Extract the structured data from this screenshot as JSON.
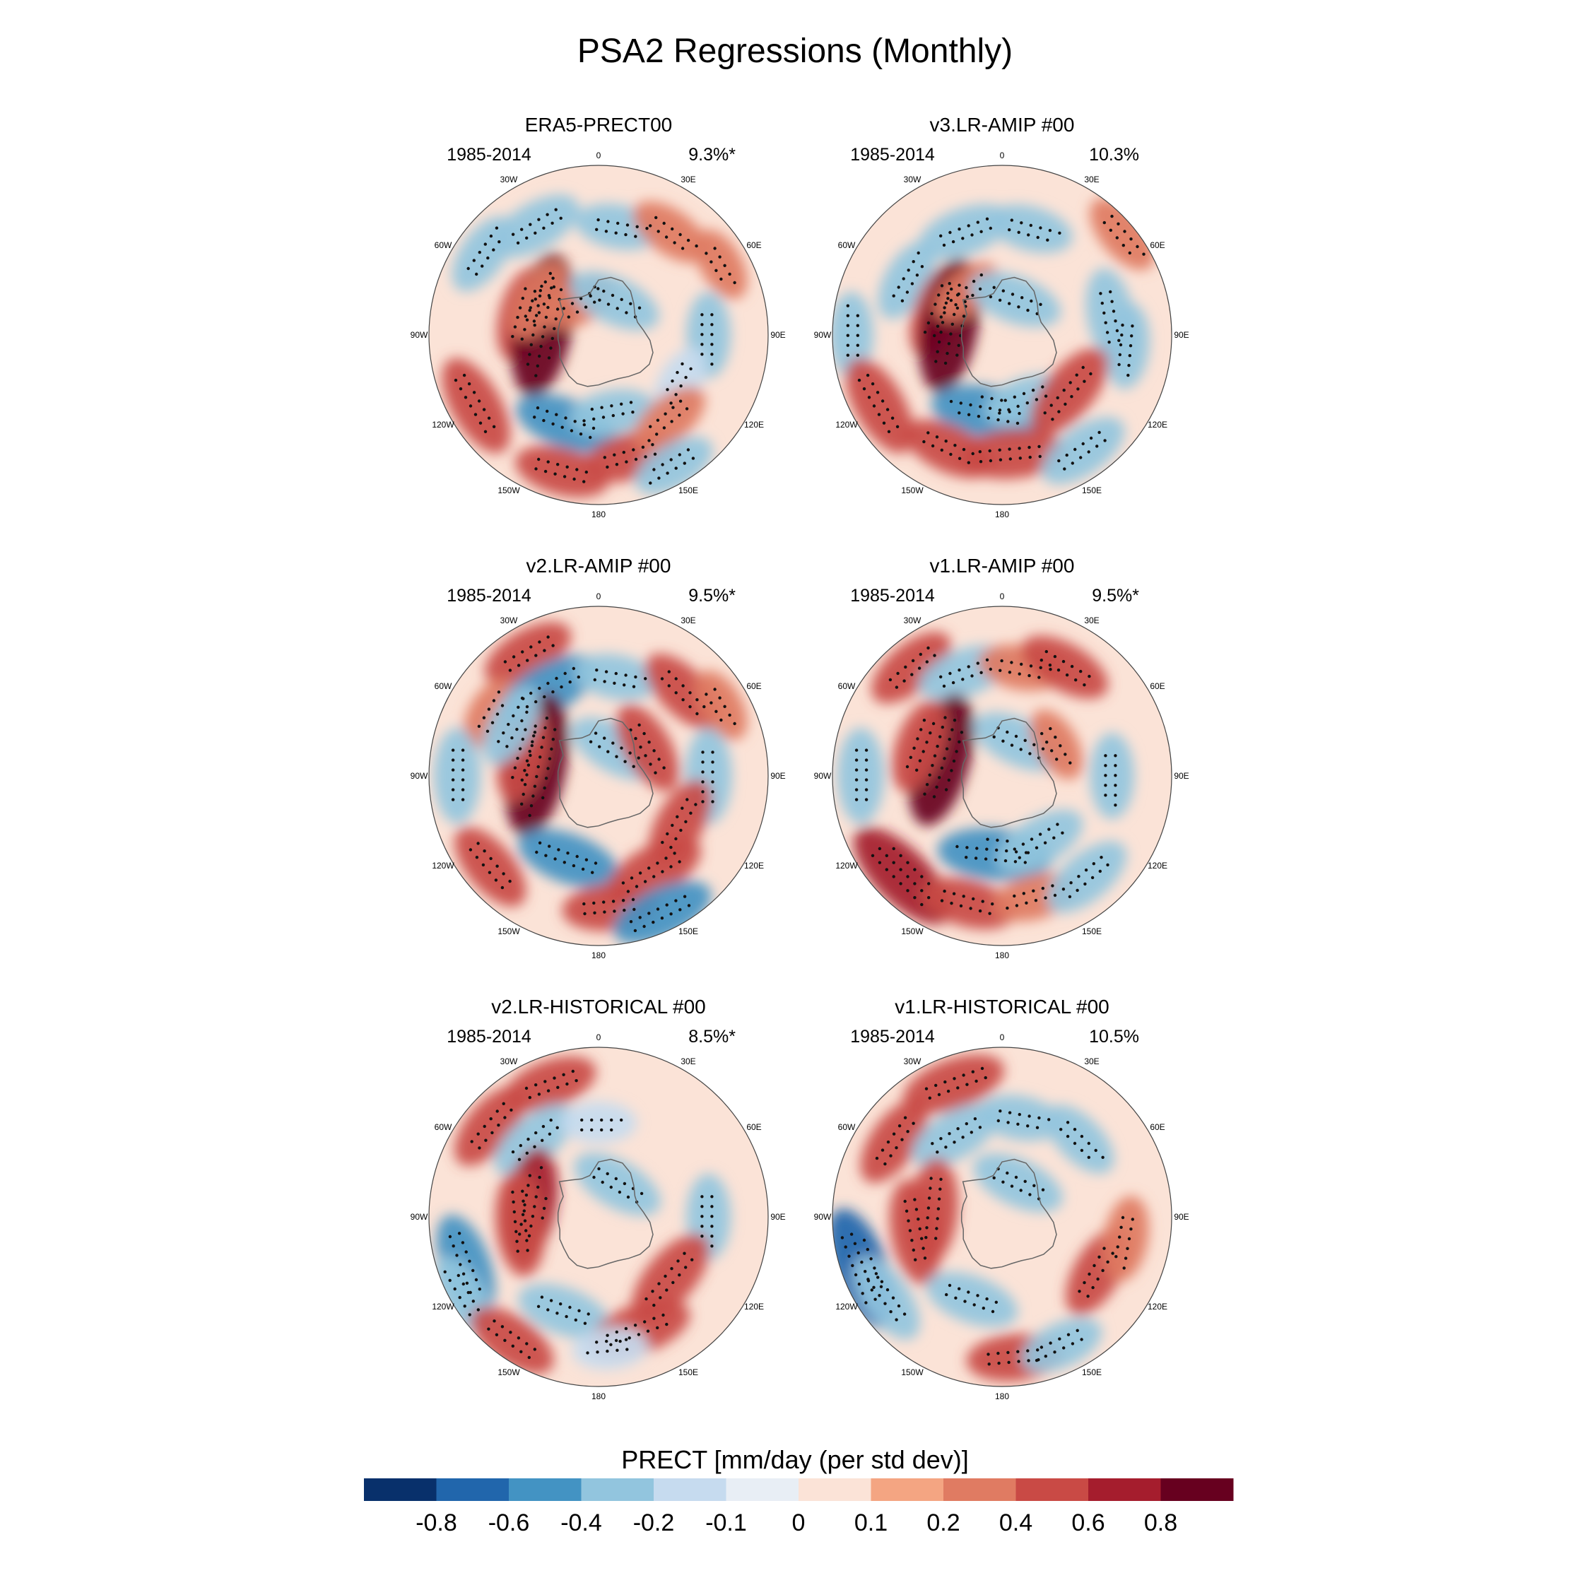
{
  "figure": {
    "title": "PSA2 Regressions (Monthly)"
  },
  "chart_data": {
    "type": "heatmap",
    "projection": "south-polar-stereographic",
    "variable": "PRECT",
    "longitude_labels": [
      "0",
      "30E",
      "60E",
      "90E",
      "120E",
      "150E",
      "180",
      "150W",
      "120W",
      "90W",
      "60W",
      "30W"
    ],
    "panels": [
      {
        "title": "ERA5-PRECT00",
        "period": "1985-2014",
        "variance": "9.3%*",
        "features": [
          {
            "lon": 305,
            "lat": -45,
            "value": -0.3
          },
          {
            "lon": 330,
            "lat": -50,
            "value": -0.4
          },
          {
            "lon": 10,
            "lat": -55,
            "value": -0.3
          },
          {
            "lon": 35,
            "lat": -50,
            "value": 0.3
          },
          {
            "lon": 60,
            "lat": -45,
            "value": 0.2
          },
          {
            "lon": 285,
            "lat": -65,
            "value": 0.4
          },
          {
            "lon": 280,
            "lat": -72,
            "value": 0.9
          },
          {
            "lon": 300,
            "lat": -68,
            "value": 0.3
          },
          {
            "lon": 330,
            "lat": -78,
            "value": 0.2
          },
          {
            "lon": 90,
            "lat": -55,
            "value": -0.3
          },
          {
            "lon": 120,
            "lat": -60,
            "value": -0.2
          },
          {
            "lon": 200,
            "lat": -60,
            "value": -0.5
          },
          {
            "lon": 170,
            "lat": -65,
            "value": -0.3
          },
          {
            "lon": 240,
            "lat": -45,
            "value": 0.5
          },
          {
            "lon": 165,
            "lat": -50,
            "value": 0.4
          },
          {
            "lon": 195,
            "lat": -45,
            "value": 0.4
          },
          {
            "lon": 140,
            "lat": -55,
            "value": 0.3
          },
          {
            "lon": 150,
            "lat": -42,
            "value": -0.3
          },
          {
            "lon": 25,
            "lat": -78,
            "value": -0.4
          }
        ]
      },
      {
        "title": "v3.LR-AMIP  #00",
        "period": "1985-2014",
        "variance": "10.3%",
        "features": [
          {
            "lon": 300,
            "lat": -55,
            "value": -0.3
          },
          {
            "lon": 340,
            "lat": -55,
            "value": -0.4
          },
          {
            "lon": 15,
            "lat": -55,
            "value": -0.3
          },
          {
            "lon": 50,
            "lat": -40,
            "value": 0.3
          },
          {
            "lon": 290,
            "lat": -68,
            "value": 0.4
          },
          {
            "lon": 280,
            "lat": -73,
            "value": 0.8
          },
          {
            "lon": 320,
            "lat": -72,
            "value": 0.2
          },
          {
            "lon": 270,
            "lat": -42,
            "value": -0.3
          },
          {
            "lon": 80,
            "lat": -55,
            "value": -0.4
          },
          {
            "lon": 95,
            "lat": -50,
            "value": -0.3
          },
          {
            "lon": 190,
            "lat": -65,
            "value": -0.6
          },
          {
            "lon": 160,
            "lat": -68,
            "value": -0.3
          },
          {
            "lon": 130,
            "lat": -62,
            "value": 0.5
          },
          {
            "lon": 175,
            "lat": -52,
            "value": 0.5
          },
          {
            "lon": 205,
            "lat": -50,
            "value": 0.4
          },
          {
            "lon": 240,
            "lat": -45,
            "value": 0.5
          },
          {
            "lon": 145,
            "lat": -45,
            "value": -0.4
          },
          {
            "lon": 20,
            "lat": -78,
            "value": -0.4
          }
        ]
      },
      {
        "title": "v2.LR-AMIP  #00",
        "period": "1985-2014",
        "variance": "9.5%*",
        "features": [
          {
            "lon": 330,
            "lat": -45,
            "value": 0.4
          },
          {
            "lon": 300,
            "lat": -50,
            "value": 0.2
          },
          {
            "lon": 330,
            "lat": -58,
            "value": -0.5
          },
          {
            "lon": 10,
            "lat": -58,
            "value": -0.3
          },
          {
            "lon": 45,
            "lat": -52,
            "value": 0.4
          },
          {
            "lon": 60,
            "lat": -45,
            "value": 0.2
          },
          {
            "lon": 280,
            "lat": -70,
            "value": 0.9
          },
          {
            "lon": 285,
            "lat": -65,
            "value": 0.4
          },
          {
            "lon": 270,
            "lat": -45,
            "value": -0.4
          },
          {
            "lon": 300,
            "lat": -58,
            "value": -0.3
          },
          {
            "lon": 90,
            "lat": -55,
            "value": -0.4
          },
          {
            "lon": 200,
            "lat": -62,
            "value": -0.5
          },
          {
            "lon": 120,
            "lat": -60,
            "value": 0.4
          },
          {
            "lon": 150,
            "lat": -55,
            "value": 0.5
          },
          {
            "lon": 175,
            "lat": -48,
            "value": 0.4
          },
          {
            "lon": 230,
            "lat": -45,
            "value": 0.4
          },
          {
            "lon": 155,
            "lat": -42,
            "value": -0.5
          },
          {
            "lon": 30,
            "lat": -80,
            "value": -0.4
          },
          {
            "lon": 60,
            "lat": -72,
            "value": 0.4
          }
        ]
      },
      {
        "title": "v1.LR-AMIP  #00",
        "period": "1985-2014",
        "variance": "9.5%*",
        "features": [
          {
            "lon": 320,
            "lat": -45,
            "value": 0.4
          },
          {
            "lon": 340,
            "lat": -55,
            "value": -0.4
          },
          {
            "lon": 10,
            "lat": -55,
            "value": 0.3
          },
          {
            "lon": 30,
            "lat": -50,
            "value": 0.4
          },
          {
            "lon": 285,
            "lat": -70,
            "value": 0.8
          },
          {
            "lon": 290,
            "lat": -62,
            "value": 0.4
          },
          {
            "lon": 270,
            "lat": -45,
            "value": -0.4
          },
          {
            "lon": 90,
            "lat": -55,
            "value": -0.3
          },
          {
            "lon": 185,
            "lat": -65,
            "value": -0.6
          },
          {
            "lon": 150,
            "lat": -66,
            "value": -0.4
          },
          {
            "lon": 225,
            "lat": -45,
            "value": 0.7
          },
          {
            "lon": 195,
            "lat": -48,
            "value": 0.4
          },
          {
            "lon": 165,
            "lat": -50,
            "value": 0.3
          },
          {
            "lon": 140,
            "lat": -48,
            "value": -0.4
          },
          {
            "lon": 25,
            "lat": -78,
            "value": -0.4
          },
          {
            "lon": 60,
            "lat": -70,
            "value": 0.2
          }
        ]
      },
      {
        "title": "v2.LR-HISTORICAL  #00",
        "period": "1985-2014",
        "variance": "8.5%*",
        "features": [
          {
            "lon": 340,
            "lat": -45,
            "value": 0.4
          },
          {
            "lon": 310,
            "lat": -45,
            "value": 0.4
          },
          {
            "lon": 320,
            "lat": -58,
            "value": -0.4
          },
          {
            "lon": 0,
            "lat": -60,
            "value": -0.2
          },
          {
            "lon": 280,
            "lat": -68,
            "value": 0.6
          },
          {
            "lon": 265,
            "lat": -65,
            "value": 0.5
          },
          {
            "lon": 250,
            "lat": -45,
            "value": -0.5
          },
          {
            "lon": 240,
            "lat": -40,
            "value": -0.3
          },
          {
            "lon": 200,
            "lat": -58,
            "value": -0.4
          },
          {
            "lon": 90,
            "lat": -55,
            "value": -0.3
          },
          {
            "lon": 130,
            "lat": -60,
            "value": 0.5
          },
          {
            "lon": 160,
            "lat": -52,
            "value": 0.5
          },
          {
            "lon": 215,
            "lat": -42,
            "value": 0.4
          },
          {
            "lon": 30,
            "lat": -78,
            "value": -0.4
          },
          {
            "lon": 175,
            "lat": -48,
            "value": -0.2
          }
        ]
      },
      {
        "title": "v1.LR-HISTORICAL  #00",
        "period": "1985-2014",
        "variance": "10.5%",
        "features": [
          {
            "lon": 340,
            "lat": -45,
            "value": 0.5
          },
          {
            "lon": 305,
            "lat": -48,
            "value": 0.4
          },
          {
            "lon": 330,
            "lat": -60,
            "value": -0.4
          },
          {
            "lon": 10,
            "lat": -58,
            "value": -0.3
          },
          {
            "lon": 45,
            "lat": -55,
            "value": -0.3
          },
          {
            "lon": 275,
            "lat": -68,
            "value": 0.5
          },
          {
            "lon": 260,
            "lat": -62,
            "value": 0.5
          },
          {
            "lon": 250,
            "lat": -42,
            "value": -0.7
          },
          {
            "lon": 235,
            "lat": -45,
            "value": -0.4
          },
          {
            "lon": 200,
            "lat": -62,
            "value": -0.4
          },
          {
            "lon": 120,
            "lat": -55,
            "value": 0.4
          },
          {
            "lon": 100,
            "lat": -50,
            "value": 0.3
          },
          {
            "lon": 175,
            "lat": -45,
            "value": 0.4
          },
          {
            "lon": 155,
            "lat": -45,
            "value": -0.3
          },
          {
            "lon": 25,
            "lat": -78,
            "value": -0.4
          }
        ]
      }
    ],
    "colorbar": {
      "title": "PRECT [mm/day (per std dev)]",
      "tick_labels": [
        "-0.8",
        "-0.6",
        "-0.4",
        "-0.2",
        "-0.1",
        "0",
        "0.1",
        "0.2",
        "0.4",
        "0.6",
        "0.8"
      ],
      "levels": [
        -0.8,
        -0.6,
        -0.4,
        -0.2,
        -0.1,
        0,
        0.1,
        0.2,
        0.4,
        0.6,
        0.8
      ],
      "colors": [
        "#08306b",
        "#2166ac",
        "#4393c3",
        "#92c5de",
        "#c6dbef",
        "#e8eef5",
        "#fbe3d7",
        "#f4a582",
        "#e07b62",
        "#c94a45",
        "#a51d2d",
        "#67001f"
      ]
    }
  }
}
